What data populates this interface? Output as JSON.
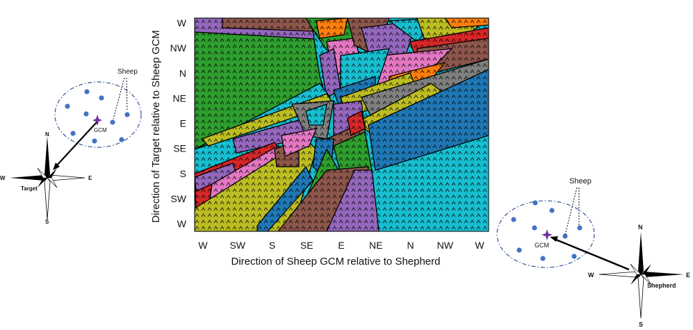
{
  "figure": {
    "x_axis_label": "Direction of Sheep GCM relative to Shepherd",
    "y_axis_label": "Direction of Target relative to Sheep GCM",
    "x_ticks": [
      "W",
      "SW",
      "S",
      "SE",
      "E",
      "NE",
      "N",
      "NW",
      "W"
    ],
    "y_ticks": [
      "W",
      "NW",
      "N",
      "NE",
      "E",
      "SE",
      "S",
      "SW",
      "W"
    ]
  },
  "left_diagram": {
    "sheep_label": "Sheep",
    "gcm_label": "GCM",
    "target_label": "Target",
    "compass": {
      "n": "N",
      "s": "S",
      "e": "E",
      "w": "W"
    }
  },
  "right_diagram": {
    "sheep_label": "Sheep",
    "gcm_label": "GCM",
    "shepherd_label": "Shepherd",
    "compass": {
      "n": "N",
      "s": "S",
      "e": "E",
      "w": "W"
    }
  },
  "colors": {
    "green": "#2e9e2e",
    "cyan": "#17becf",
    "blue": "#1f77b4",
    "purple": "#9467bd",
    "brown": "#8c564b",
    "olive": "#bcbd22",
    "red": "#d62728",
    "pink": "#e377c2",
    "gray": "#7f7f7f",
    "orange": "#ff7f0e",
    "sheep_dot": "#4472c4",
    "gcm_star": "#7030a0"
  }
}
